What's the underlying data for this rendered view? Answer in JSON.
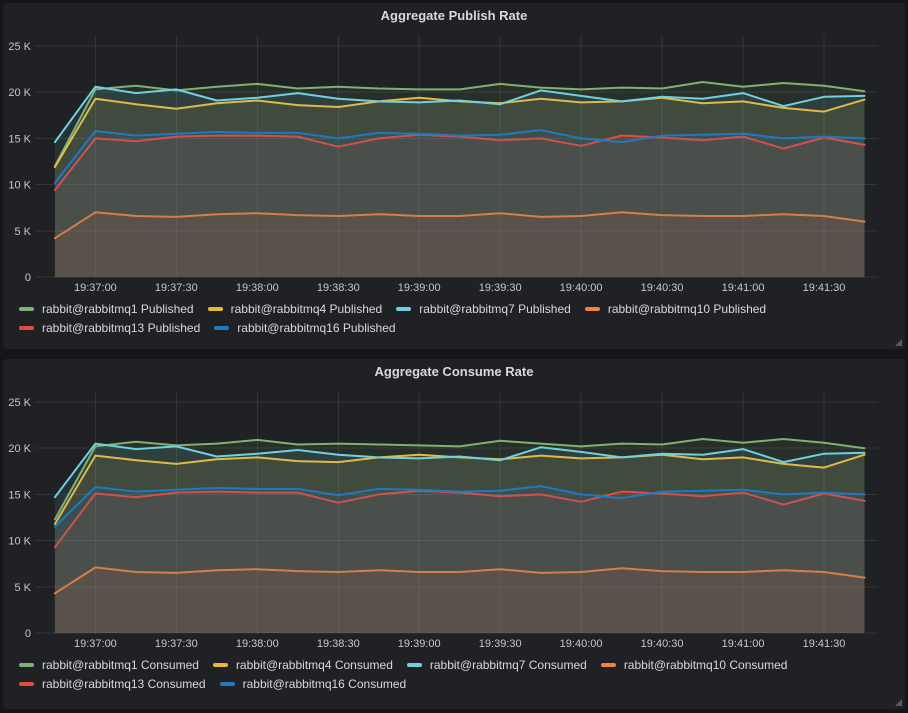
{
  "theme": {
    "page_bg": "#141619",
    "panel_bg": "#1f2124",
    "title_color": "#d8d9da",
    "axis_text_color": "#c7c8ca",
    "series_colors": {
      "green": "#7EB26D",
      "yellow": "#EAB839",
      "cyan": "#6ED0E0",
      "orange": "#EF843C",
      "red": "#E24D42",
      "blue": "#1F78C1"
    }
  },
  "panels": [
    {
      "title": "Aggregate Publish Rate"
    },
    {
      "title": "Aggregate Consume Rate"
    }
  ],
  "chart_data": [
    {
      "type": "line",
      "title": "Aggregate Publish Rate",
      "grid": true,
      "legend_position": "bottom",
      "x_domain": [
        "19:36:38",
        "19:41:50"
      ],
      "x_ticks": [
        "19:37:00",
        "19:37:30",
        "19:38:00",
        "19:38:30",
        "19:39:00",
        "19:39:30",
        "19:40:00",
        "19:40:30",
        "19:41:00",
        "19:41:30"
      ],
      "y_ticks": [
        {
          "value": 0,
          "label": "0"
        },
        {
          "value": 5000,
          "label": "5 K"
        },
        {
          "value": 10000,
          "label": "10 K"
        },
        {
          "value": 15000,
          "label": "15 K"
        },
        {
          "value": 20000,
          "label": "20 K"
        },
        {
          "value": 25000,
          "label": "25 K"
        }
      ],
      "ylim": [
        0,
        25000
      ],
      "x": [
        "19:36:45",
        "19:37:00",
        "19:37:15",
        "19:37:30",
        "19:37:45",
        "19:38:00",
        "19:38:15",
        "19:38:30",
        "19:38:45",
        "19:39:00",
        "19:39:15",
        "19:39:30",
        "19:39:45",
        "19:40:00",
        "19:40:15",
        "19:40:30",
        "19:40:45",
        "19:41:00",
        "19:41:15",
        "19:41:30",
        "19:41:45"
      ],
      "series": [
        {
          "name": "rabbit@rabbitmq1 Published",
          "color": "#7EB26D",
          "values": [
            12000,
            20300,
            20700,
            20200,
            20600,
            20900,
            20400,
            20600,
            20400,
            20300,
            20300,
            20900,
            20500,
            20300,
            20500,
            20400,
            21100,
            20600,
            21000,
            20700,
            20100
          ]
        },
        {
          "name": "rabbit@rabbitmq4 Published",
          "color": "#EAB839",
          "values": [
            11900,
            19300,
            18700,
            18200,
            18800,
            19100,
            18600,
            18400,
            19000,
            19400,
            19000,
            18800,
            19300,
            18900,
            19000,
            19400,
            18800,
            19000,
            18300,
            17900,
            19200
          ]
        },
        {
          "name": "rabbit@rabbitmq7 Published",
          "color": "#6ED0E0",
          "values": [
            14600,
            20600,
            19900,
            20300,
            19100,
            19400,
            19900,
            19300,
            19000,
            18900,
            19100,
            18700,
            20200,
            19600,
            19000,
            19500,
            19300,
            19900,
            18500,
            19500,
            19600
          ]
        },
        {
          "name": "rabbit@rabbitmq10 Published",
          "color": "#EF843C",
          "values": [
            4200,
            7000,
            6600,
            6500,
            6800,
            6900,
            6700,
            6600,
            6800,
            6600,
            6600,
            6900,
            6500,
            6600,
            7000,
            6700,
            6600,
            6600,
            6800,
            6600,
            6000
          ]
        },
        {
          "name": "rabbit@rabbitmq13 Published",
          "color": "#E24D42",
          "values": [
            9400,
            15000,
            14700,
            15200,
            15300,
            15300,
            15200,
            14100,
            15000,
            15400,
            15200,
            14800,
            15000,
            14200,
            15300,
            15100,
            14800,
            15200,
            13900,
            15100,
            14300
          ]
        },
        {
          "name": "rabbit@rabbitmq16 Published",
          "color": "#1F78C1",
          "values": [
            10200,
            15800,
            15300,
            15500,
            15700,
            15600,
            15600,
            15000,
            15600,
            15500,
            15300,
            15400,
            15900,
            15000,
            14600,
            15300,
            15400,
            15500,
            15000,
            15200,
            15000
          ]
        }
      ]
    },
    {
      "type": "line",
      "title": "Aggregate Consume Rate",
      "grid": true,
      "legend_position": "bottom",
      "x_domain": [
        "19:36:38",
        "19:41:50"
      ],
      "x_ticks": [
        "19:37:00",
        "19:37:30",
        "19:38:00",
        "19:38:30",
        "19:39:00",
        "19:39:30",
        "19:40:00",
        "19:40:30",
        "19:41:00",
        "19:41:30"
      ],
      "y_ticks": [
        {
          "value": 0,
          "label": "0"
        },
        {
          "value": 5000,
          "label": "5 K"
        },
        {
          "value": 10000,
          "label": "10 K"
        },
        {
          "value": 15000,
          "label": "15 K"
        },
        {
          "value": 20000,
          "label": "20 K"
        },
        {
          "value": 25000,
          "label": "25 K"
        }
      ],
      "ylim": [
        0,
        25000
      ],
      "x": [
        "19:36:45",
        "19:37:00",
        "19:37:15",
        "19:37:30",
        "19:37:45",
        "19:38:00",
        "19:38:15",
        "19:38:30",
        "19:38:45",
        "19:39:00",
        "19:39:15",
        "19:39:30",
        "19:39:45",
        "19:40:00",
        "19:40:15",
        "19:40:30",
        "19:40:45",
        "19:41:00",
        "19:41:15",
        "19:41:30",
        "19:41:45"
      ],
      "series": [
        {
          "name": "rabbit@rabbitmq1 Consumed",
          "color": "#7EB26D",
          "values": [
            12300,
            20200,
            20700,
            20300,
            20500,
            20900,
            20400,
            20500,
            20400,
            20300,
            20200,
            20800,
            20500,
            20200,
            20500,
            20400,
            21000,
            20600,
            21000,
            20600,
            20000
          ]
        },
        {
          "name": "rabbit@rabbitmq4 Consumed",
          "color": "#EAB839",
          "values": [
            11800,
            19200,
            18700,
            18300,
            18800,
            19000,
            18600,
            18500,
            19000,
            19300,
            19000,
            18800,
            19200,
            18900,
            19000,
            19300,
            18800,
            19000,
            18300,
            17900,
            19300
          ]
        },
        {
          "name": "rabbit@rabbitmq7 Consumed",
          "color": "#6ED0E0",
          "values": [
            14700,
            20500,
            19900,
            20200,
            19100,
            19400,
            19800,
            19300,
            19000,
            18900,
            19100,
            18700,
            20100,
            19600,
            19000,
            19400,
            19300,
            19900,
            18500,
            19400,
            19500
          ]
        },
        {
          "name": "rabbit@rabbitmq10 Consumed",
          "color": "#EF843C",
          "values": [
            4300,
            7100,
            6600,
            6500,
            6800,
            6900,
            6700,
            6600,
            6800,
            6600,
            6600,
            6900,
            6500,
            6600,
            7000,
            6700,
            6600,
            6600,
            6800,
            6600,
            6000
          ]
        },
        {
          "name": "rabbit@rabbitmq13 Consumed",
          "color": "#E24D42",
          "values": [
            9300,
            15100,
            14700,
            15200,
            15300,
            15200,
            15200,
            14100,
            15000,
            15400,
            15200,
            14800,
            15000,
            14200,
            15300,
            15100,
            14800,
            15200,
            13900,
            15100,
            14300
          ]
        },
        {
          "name": "rabbit@rabbitmq16 Consumed",
          "color": "#1F78C1",
          "values": [
            11500,
            15800,
            15300,
            15500,
            15700,
            15600,
            15600,
            14900,
            15600,
            15500,
            15300,
            15400,
            15900,
            15000,
            14600,
            15300,
            15400,
            15500,
            15000,
            15200,
            15000
          ]
        }
      ]
    }
  ]
}
